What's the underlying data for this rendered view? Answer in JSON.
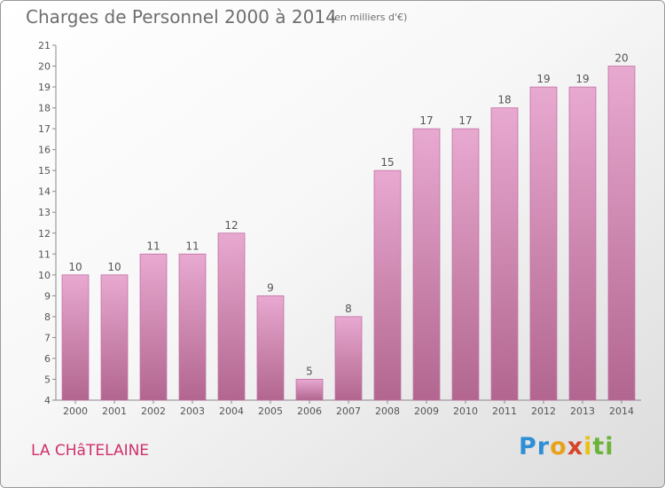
{
  "header": {
    "title": "Charges de Personnel 2000 à 2014",
    "subtitle": "(en milliers d'€)"
  },
  "footer": {
    "commune": "LA CHâTELAINE",
    "logo_letters": [
      {
        "char": "P",
        "color": "#2f8fd6"
      },
      {
        "char": "r",
        "color": "#2f8fd6"
      },
      {
        "char": "o",
        "color": "#e8a21a"
      },
      {
        "char": "x",
        "color": "#d6452c"
      },
      {
        "char": "i",
        "color": "#e8c218"
      },
      {
        "char": "t",
        "color": "#6cb339"
      },
      {
        "char": "i",
        "color": "#6cb339"
      }
    ]
  },
  "chart_data": {
    "type": "bar",
    "categories": [
      "2000",
      "2001",
      "2002",
      "2003",
      "2004",
      "2005",
      "2006",
      "2007",
      "2008",
      "2009",
      "2010",
      "2011",
      "2012",
      "2013",
      "2014"
    ],
    "values": [
      10,
      10,
      11,
      11,
      12,
      9,
      5,
      8,
      15,
      17,
      17,
      18,
      19,
      19,
      20
    ],
    "ylim": [
      4,
      21
    ],
    "yticks": [
      4,
      5,
      6,
      7,
      8,
      9,
      10,
      11,
      12,
      13,
      14,
      15,
      16,
      17,
      18,
      19,
      20,
      21
    ],
    "grid": false,
    "bar_color": "#d98fbd",
    "bar_border": "#c06ea3"
  }
}
